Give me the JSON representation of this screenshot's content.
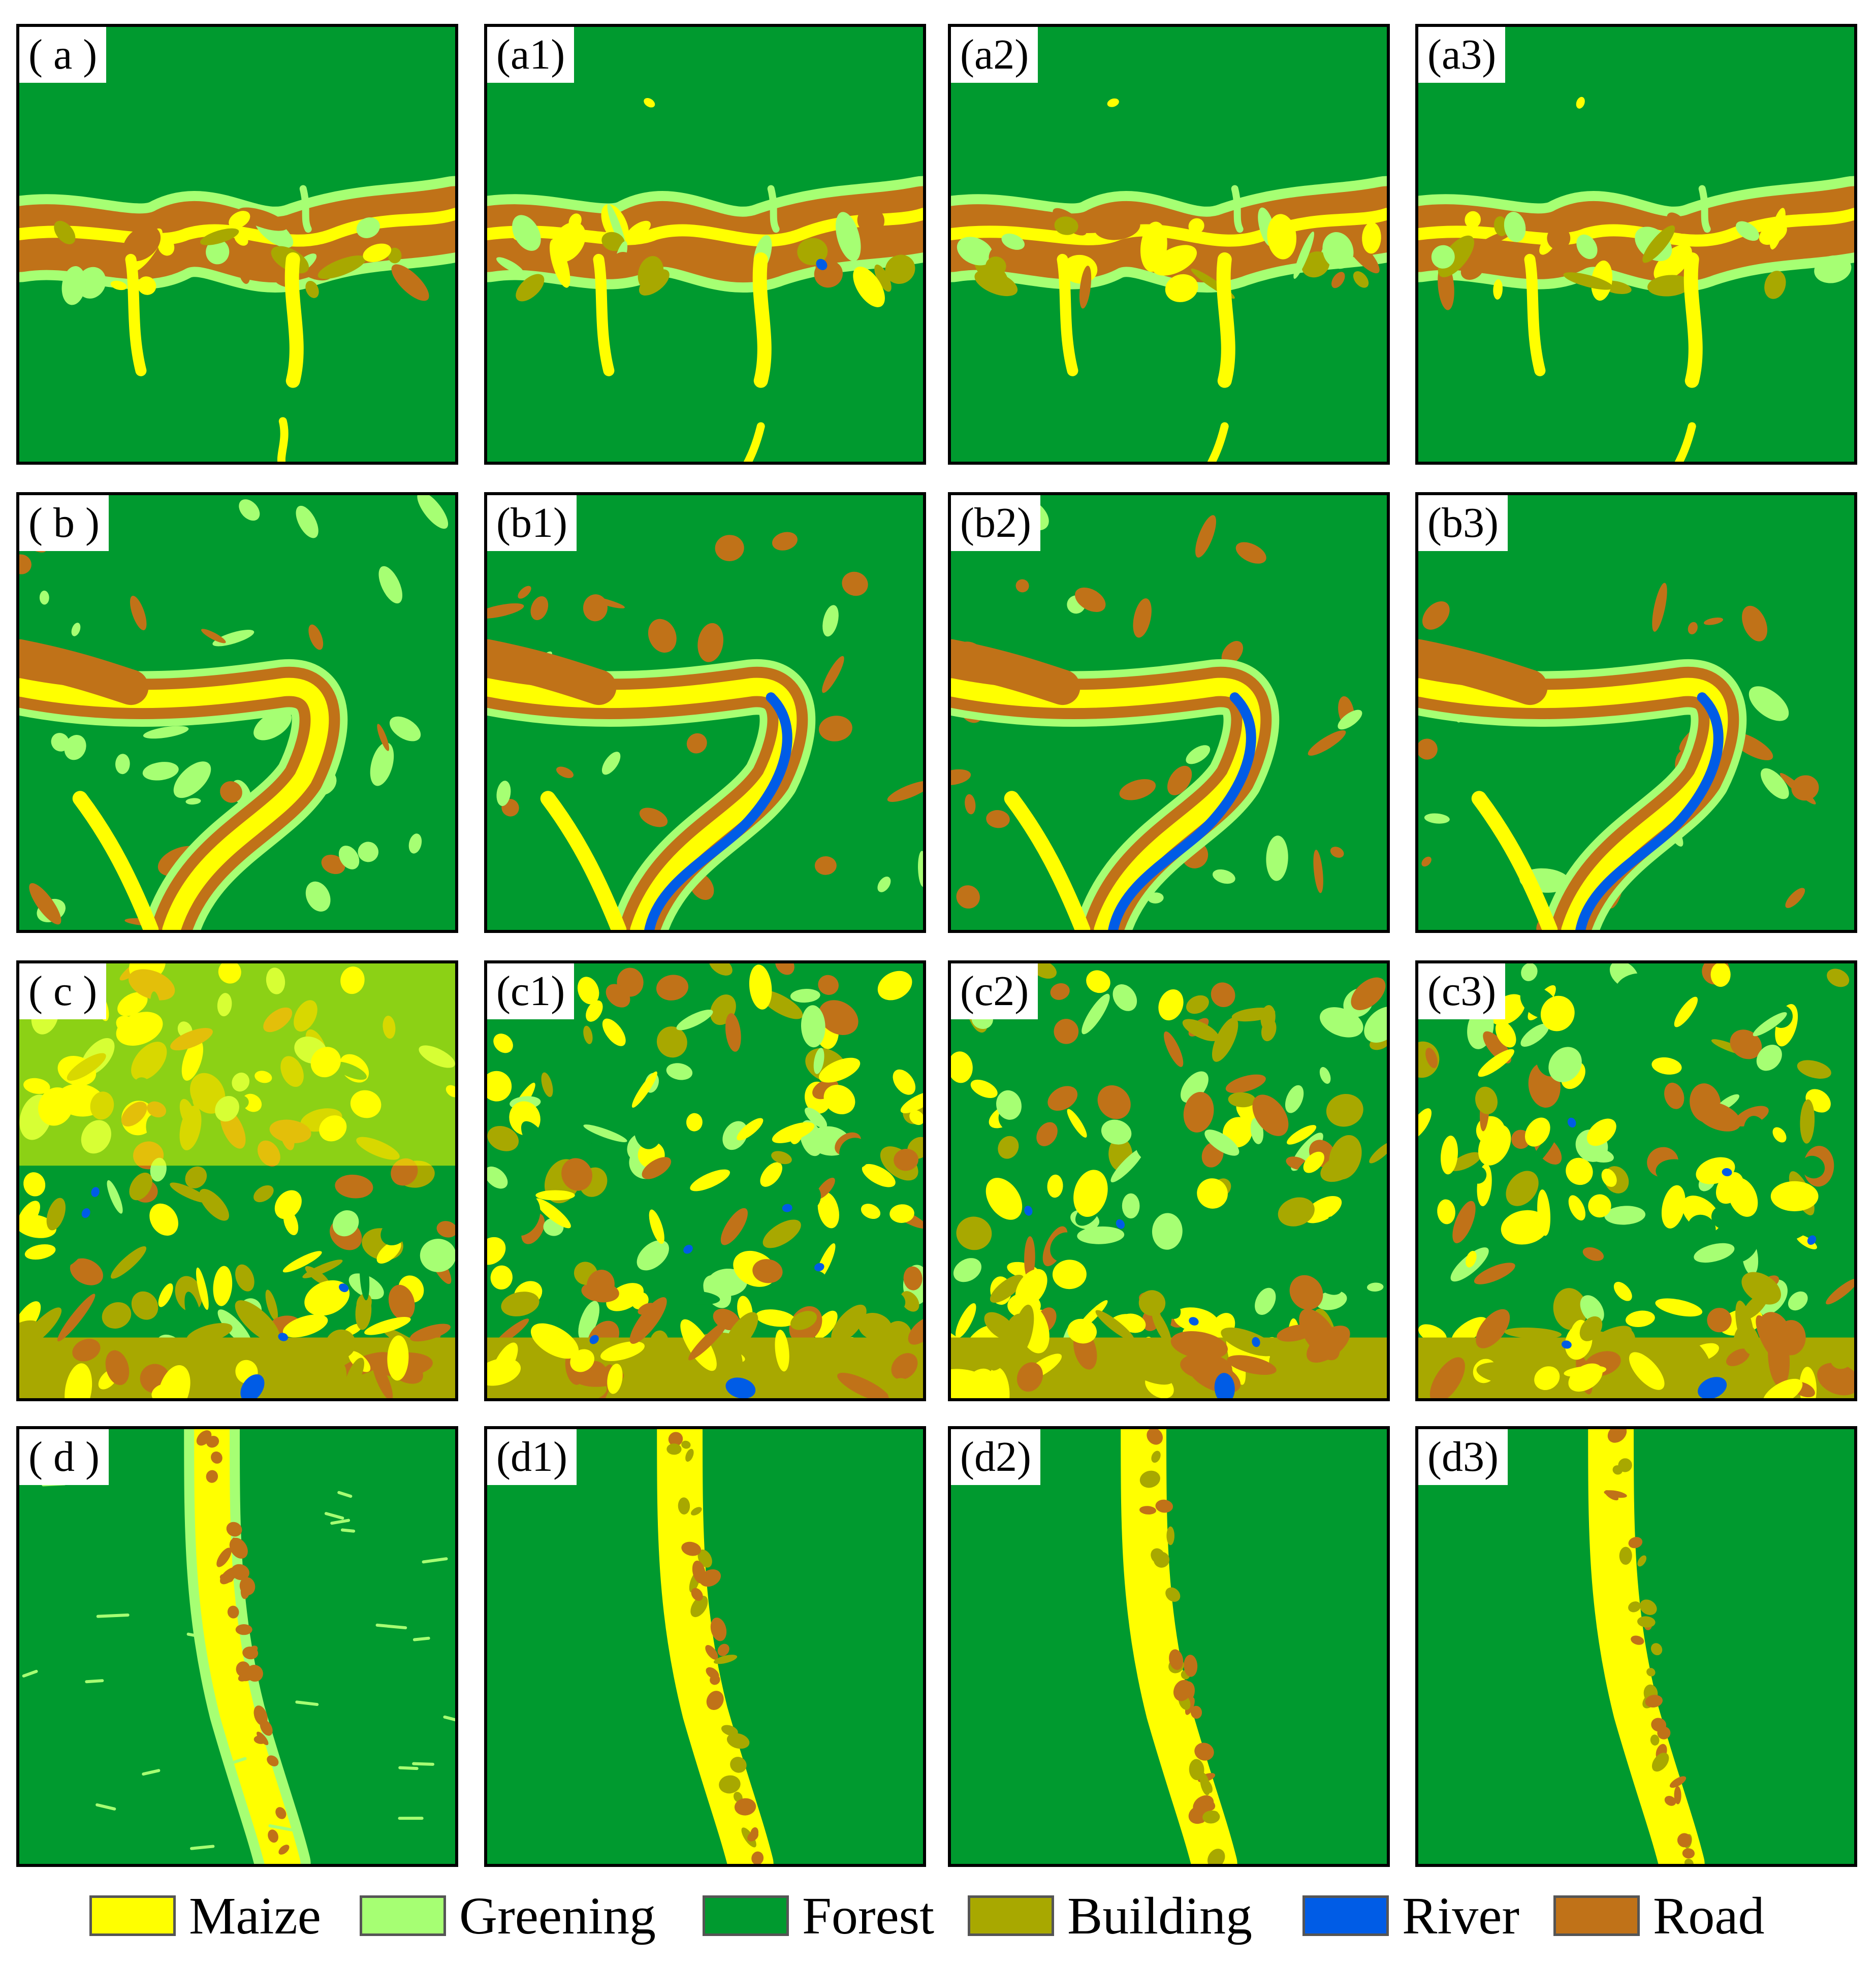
{
  "figure": {
    "rows": [
      {
        "row": "a",
        "style": "band",
        "labels": [
          "( a )",
          "(a1)",
          "(a2)",
          "(a3)"
        ]
      },
      {
        "row": "b",
        "style": "river",
        "labels": [
          "( b )",
          "(b1)",
          "(b2)",
          "(b3)"
        ]
      },
      {
        "row": "c",
        "style": "urban",
        "labels": [
          "( c )",
          "(c1)",
          "(c2)",
          "(c3)"
        ]
      },
      {
        "row": "d",
        "style": "strip",
        "labels": [
          "( d )",
          "(d1)",
          "(d2)",
          "(d3)"
        ]
      }
    ]
  },
  "legend": [
    {
      "label": "Maize",
      "color": "#ffff00"
    },
    {
      "label": "Greening",
      "color": "#a6ff73"
    },
    {
      "label": "Forest",
      "color": "#009a2f"
    },
    {
      "label": "Building",
      "color": "#a8a800"
    },
    {
      "label": "River",
      "color": "#005ce6"
    },
    {
      "label": "Road",
      "color": "#c07218"
    }
  ]
}
